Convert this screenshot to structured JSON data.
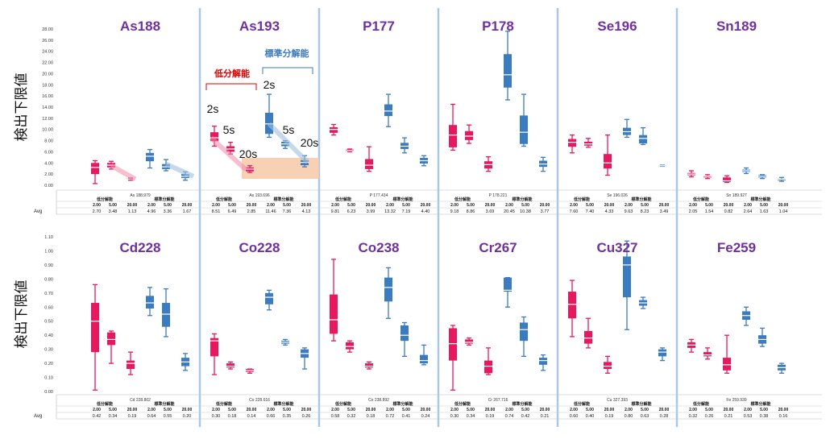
{
  "y_axis_label": "検出下限値",
  "colors": {
    "low": "#e8185f",
    "std": "#3b7bbf",
    "title": "#7030a0",
    "divider": "#a9c8e8",
    "annot_low": "#e00000",
    "annot_std": "#3b7bbf",
    "highlight": "#f7c9a8"
  },
  "table_labels": {
    "low": "低分解能",
    "std": "標準分解能",
    "avg": "Avg"
  },
  "annotations": {
    "low_label": "低分解能",
    "std_label": "標準分解能",
    "low_times": [
      "2s",
      "5s",
      "20s"
    ],
    "std_times": [
      "2s",
      "5s",
      "20s"
    ]
  },
  "chart_data": [
    {
      "type": "box",
      "row": "top",
      "ylim": [
        0,
        28
      ],
      "yticks": [
        "0.00",
        "2.00",
        "4.00",
        "6.00",
        "8.00",
        "10.00",
        "12.00",
        "14.00",
        "16.00",
        "18.00",
        "20.00",
        "22.00",
        "24.00",
        "26.00",
        "28.00"
      ],
      "panels": [
        {
          "title": "As188",
          "sublabel": "As 188.979",
          "integration": [
            "2.00",
            "5.00",
            "20.00",
            "2.00",
            "5.00",
            "20.00"
          ],
          "avg": [
            "2.70",
            "3.48",
            "1.13",
            "4.96",
            "3.36",
            "1.67"
          ],
          "boxes": [
            [
              0.3,
              2.0,
              3.2,
              4.0,
              4.4
            ],
            [
              2.9,
              3.2,
              3.6,
              4.0,
              4.3
            ],
            [
              0.9,
              1.0,
              1.1,
              1.2,
              1.3
            ],
            [
              3.1,
              4.3,
              5.2,
              5.8,
              6.4
            ],
            [
              2.6,
              2.9,
              3.3,
              3.8,
              4.6
            ],
            [
              0.9,
              1.3,
              1.6,
              2.0,
              2.4
            ]
          ]
        },
        {
          "title": "As193",
          "sublabel": "As 193.696",
          "integration": [
            "2.00",
            "5.00",
            "20.00",
            "2.00",
            "5.00",
            "20.00"
          ],
          "avg": [
            "8.51",
            "6.49",
            "2.85",
            "11.46",
            "7.36",
            "4.13"
          ],
          "boxes": [
            [
              7.0,
              7.9,
              8.5,
              9.5,
              10.6
            ],
            [
              5.6,
              6.0,
              6.5,
              7.0,
              7.7
            ],
            [
              2.3,
              2.5,
              2.9,
              3.2,
              3.5
            ],
            [
              8.6,
              9.2,
              11.0,
              13.0,
              16.3
            ],
            [
              6.6,
              7.0,
              7.4,
              7.8,
              8.0
            ],
            [
              3.3,
              3.6,
              4.1,
              4.5,
              5.3
            ]
          ]
        },
        {
          "title": "P177",
          "sublabel": "P 177.434",
          "integration": [
            "2.00",
            "5.00",
            "20.00",
            "2.00",
            "5.00",
            "20.00"
          ],
          "avg": [
            "9.81",
            "6.23",
            "3.99",
            "13.32",
            "7.19",
            "4.40"
          ],
          "boxes": [
            [
              9.0,
              9.4,
              10.0,
              10.4,
              10.9
            ],
            [
              6.0,
              6.1,
              6.2,
              6.4,
              6.5
            ],
            [
              2.5,
              2.9,
              3.6,
              4.7,
              6.9
            ],
            [
              10.5,
              12.4,
              13.3,
              14.5,
              16.3
            ],
            [
              5.8,
              6.5,
              7.0,
              7.6,
              8.5
            ],
            [
              3.5,
              3.9,
              4.4,
              4.9,
              5.3
            ]
          ]
        },
        {
          "title": "P178",
          "sublabel": "P 178.221",
          "integration": [
            "2.00",
            "5.00",
            "20.00",
            "2.00",
            "5.00",
            "20.00"
          ],
          "avg": [
            "9.18",
            "8.86",
            "3.69",
            "20.45",
            "10.38",
            "3.77"
          ],
          "boxes": [
            [
              6.3,
              6.8,
              9.0,
              10.8,
              14.5
            ],
            [
              7.5,
              8.1,
              8.8,
              9.7,
              10.8
            ],
            [
              2.5,
              3.0,
              3.7,
              4.3,
              5.1
            ],
            [
              15.3,
              17.5,
              19.8,
              23.5,
              27.6
            ],
            [
              7.0,
              7.4,
              9.5,
              12.5,
              16.3
            ],
            [
              2.5,
              3.3,
              3.8,
              4.4,
              5.0
            ]
          ]
        },
        {
          "title": "Se196",
          "sublabel": "Se 196.026",
          "integration": [
            "2.00",
            "5.00",
            "20.00",
            "2.00",
            "5.00",
            "20.00"
          ],
          "avg": [
            "7.60",
            "7.40",
            "4.33",
            "9.63",
            "8.23",
            "3.49"
          ],
          "boxes": [
            [
              5.8,
              6.9,
              7.7,
              8.3,
              9.0
            ],
            [
              6.8,
              7.1,
              7.4,
              7.8,
              8.4
            ],
            [
              1.8,
              3.0,
              4.0,
              5.6,
              9.0
            ],
            [
              8.6,
              9.0,
              9.6,
              10.3,
              11.8
            ],
            [
              7.3,
              7.5,
              8.4,
              9.0,
              10.3
            ],
            [
              3.4,
              3.4,
              3.5,
              3.6,
              3.6
            ]
          ]
        },
        {
          "title": "Sn189",
          "sublabel": "Sn 189.927",
          "integration": [
            "2.00",
            "5.00",
            "20.00",
            "2.00",
            "5.00",
            "20.00"
          ],
          "avg": [
            "2.05",
            "1.54",
            "0.82",
            "2.64",
            "1.63",
            "1.04"
          ],
          "boxes": [
            [
              1.5,
              1.8,
              2.0,
              2.2,
              2.6
            ],
            [
              1.2,
              1.4,
              1.6,
              1.7,
              1.9
            ],
            [
              0.5,
              0.6,
              0.8,
              1.4,
              1.7
            ],
            [
              2.1,
              2.4,
              2.6,
              2.8,
              3.1
            ],
            [
              1.2,
              1.4,
              1.6,
              1.8,
              1.9
            ],
            [
              0.7,
              0.9,
              1.1,
              1.2,
              1.4
            ]
          ]
        }
      ]
    },
    {
      "type": "box",
      "row": "bottom",
      "ylim": [
        0,
        1.1
      ],
      "yticks": [
        "0.00",
        "0.10",
        "0.20",
        "0.30",
        "0.40",
        "0.50",
        "0.60",
        "0.70",
        "0.80",
        "0.90",
        "1.00",
        "1.10"
      ],
      "panels": [
        {
          "title": "Cd228",
          "sublabel": "Cd 228.802",
          "integration": [
            "2.00",
            "5.00",
            "20.00",
            "2.00",
            "5.00",
            "20.00"
          ],
          "avg": [
            "0.42",
            "0.34",
            "0.19",
            "0.64",
            "0.55",
            "0.20"
          ],
          "boxes": [
            [
              0.01,
              0.28,
              0.5,
              0.63,
              0.76
            ],
            [
              0.2,
              0.33,
              0.37,
              0.42,
              0.43
            ],
            [
              0.12,
              0.16,
              0.2,
              0.22,
              0.28
            ],
            [
              0.54,
              0.59,
              0.63,
              0.68,
              0.74
            ],
            [
              0.39,
              0.46,
              0.55,
              0.63,
              0.73
            ],
            [
              0.15,
              0.18,
              0.21,
              0.24,
              0.27
            ]
          ]
        },
        {
          "title": "Co228",
          "sublabel": "Co 228.616",
          "integration": [
            "2.00",
            "5.00",
            "20.00",
            "2.00",
            "5.00",
            "20.00"
          ],
          "avg": [
            "0.30",
            "0.18",
            "0.14",
            "0.66",
            "0.35",
            "0.26"
          ],
          "boxes": [
            [
              0.12,
              0.25,
              0.36,
              0.38,
              0.41
            ],
            [
              0.16,
              0.17,
              0.18,
              0.2,
              0.21
            ],
            [
              0.13,
              0.14,
              0.15,
              0.16,
              0.16
            ],
            [
              0.58,
              0.62,
              0.67,
              0.7,
              0.72
            ],
            [
              0.33,
              0.34,
              0.35,
              0.36,
              0.37
            ],
            [
              0.16,
              0.24,
              0.27,
              0.3,
              0.31
            ]
          ]
        },
        {
          "title": "Co238",
          "sublabel": "Co 238.892",
          "integration": [
            "2.00",
            "5.00",
            "20.00",
            "2.00",
            "5.00",
            "20.00"
          ],
          "avg": [
            "0.58",
            "0.32",
            "0.18",
            "0.72",
            "0.41",
            "0.24"
          ],
          "boxes": [
            [
              0.36,
              0.41,
              0.51,
              0.69,
              0.94
            ],
            [
              0.28,
              0.3,
              0.32,
              0.35,
              0.36
            ],
            [
              0.16,
              0.17,
              0.18,
              0.2,
              0.21
            ],
            [
              0.52,
              0.64,
              0.74,
              0.81,
              0.88
            ],
            [
              0.25,
              0.36,
              0.4,
              0.47,
              0.49
            ],
            [
              0.19,
              0.2,
              0.22,
              0.26,
              0.33
            ]
          ]
        },
        {
          "title": "Cr267",
          "sublabel": "Cr 267.716",
          "integration": [
            "2.00",
            "5.00",
            "20.00",
            "2.00",
            "5.00",
            "20.00"
          ],
          "avg": [
            "0.30",
            "0.34",
            "0.19",
            "0.74",
            "0.42",
            "0.21"
          ],
          "boxes": [
            [
              0.01,
              0.22,
              0.34,
              0.45,
              0.47
            ],
            [
              0.33,
              0.34,
              0.35,
              0.37,
              0.38
            ],
            [
              0.12,
              0.13,
              0.18,
              0.22,
              0.31
            ],
            [
              0.6,
              0.71,
              0.72,
              0.81,
              0.81
            ],
            [
              0.25,
              0.36,
              0.44,
              0.49,
              0.53
            ],
            [
              0.15,
              0.19,
              0.22,
              0.24,
              0.26
            ]
          ]
        },
        {
          "title": "Cu327",
          "sublabel": "Cu 327.393",
          "integration": [
            "2.00",
            "5.00",
            "20.00",
            "2.00",
            "5.00",
            "20.00"
          ],
          "avg": [
            "0.60",
            "0.40",
            "0.19",
            "0.80",
            "0.63",
            "0.28"
          ],
          "boxes": [
            [
              0.39,
              0.52,
              0.62,
              0.71,
              0.79
            ],
            [
              0.31,
              0.34,
              0.38,
              0.43,
              0.52
            ],
            [
              0.13,
              0.16,
              0.18,
              0.21,
              0.25
            ],
            [
              0.44,
              0.67,
              0.9,
              0.96,
              1.07
            ],
            [
              0.59,
              0.61,
              0.63,
              0.65,
              0.67
            ],
            [
              0.22,
              0.25,
              0.28,
              0.3,
              0.31
            ]
          ]
        },
        {
          "title": "Fe259",
          "sublabel": "Fe 259.939",
          "integration": [
            "2.00",
            "5.00",
            "20.00",
            "2.00",
            "5.00",
            "20.00"
          ],
          "avg": [
            "0.32",
            "0.26",
            "0.21",
            "0.53",
            "0.38",
            "0.16"
          ],
          "boxes": [
            [
              0.28,
              0.31,
              0.33,
              0.35,
              0.37
            ],
            [
              0.23,
              0.25,
              0.26,
              0.28,
              0.31
            ],
            [
              0.13,
              0.15,
              0.19,
              0.24,
              0.4
            ],
            [
              0.47,
              0.51,
              0.54,
              0.57,
              0.6
            ],
            [
              0.32,
              0.34,
              0.37,
              0.4,
              0.45
            ],
            [
              0.13,
              0.15,
              0.17,
              0.19,
              0.2
            ]
          ]
        }
      ]
    }
  ]
}
